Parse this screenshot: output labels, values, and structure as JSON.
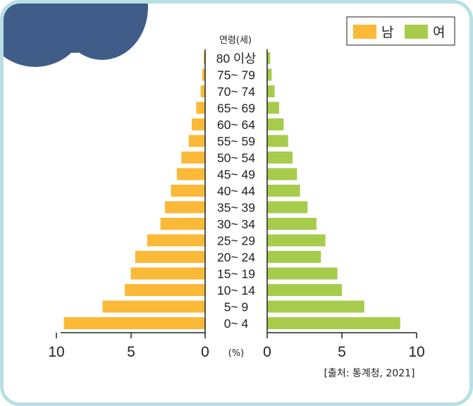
{
  "chart_data": {
    "type": "bar",
    "orientation": "horizontal",
    "y_header": "연령(세)",
    "unit_label": "(%)",
    "categories": [
      "0~ 4",
      "5~ 9",
      "10~ 14",
      "15~ 19",
      "20~ 24",
      "25~ 29",
      "30~ 34",
      "35~ 39",
      "40~ 44",
      "45~ 49",
      "50~ 54",
      "55~ 59",
      "60~ 64",
      "65~ 69",
      "70~ 74",
      "75~ 79",
      "80 이상"
    ],
    "series": [
      {
        "name": "남",
        "color": "#fbb938",
        "values": [
          9.5,
          6.9,
          5.4,
          5.0,
          4.7,
          3.9,
          3.0,
          2.7,
          2.3,
          1.9,
          1.6,
          1.1,
          0.9,
          0.6,
          0.3,
          0.2,
          0.1
        ]
      },
      {
        "name": "여",
        "color": "#a7cc4c",
        "values": [
          8.9,
          6.5,
          5.0,
          4.7,
          3.6,
          3.9,
          3.3,
          2.7,
          2.2,
          2.0,
          1.7,
          1.4,
          1.1,
          0.8,
          0.5,
          0.3,
          0.2
        ]
      }
    ],
    "xlim": [
      0,
      10
    ],
    "xticks": [
      "10",
      "5",
      "0",
      "0",
      "5",
      "10"
    ],
    "legend": "top-right",
    "source": "[출처: 통계청,  2021]"
  }
}
